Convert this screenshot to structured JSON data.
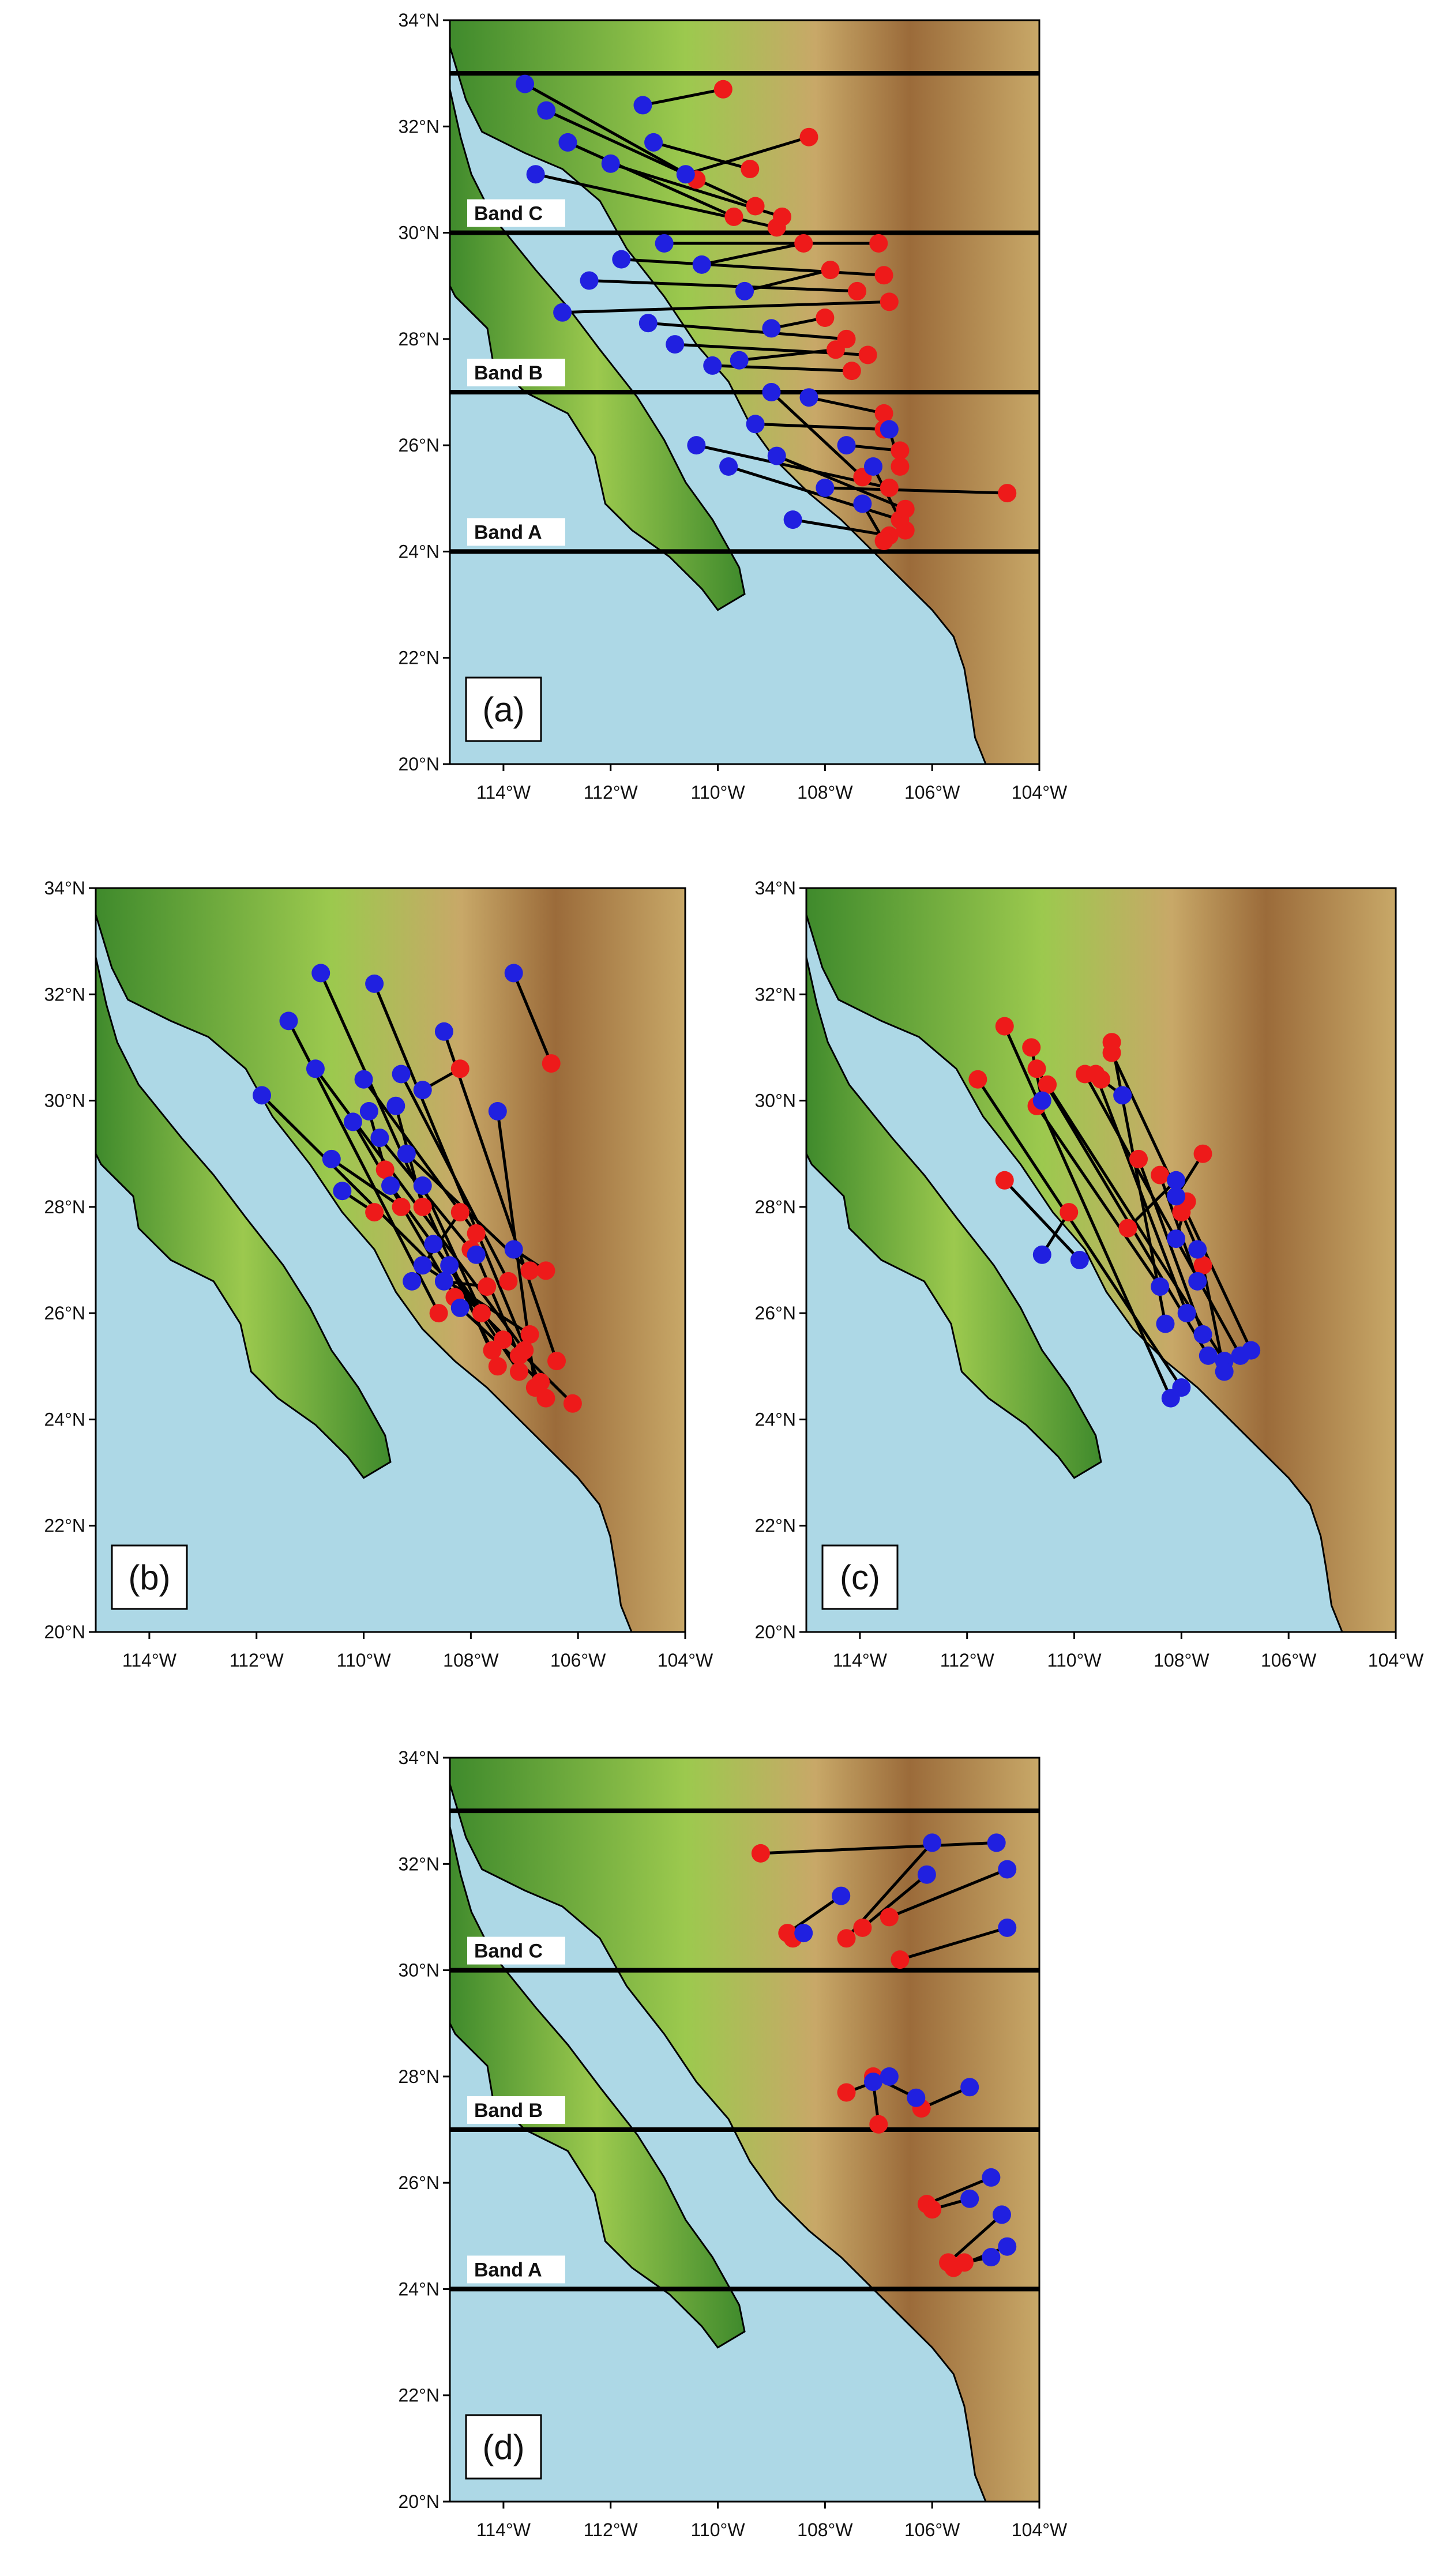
{
  "colors": {
    "ocean": "#add8e6",
    "land_low": "#3f8a2c",
    "land_mid": "#9cc94e",
    "land_high": "#c8a868",
    "land_peak": "#9b6b3a",
    "origin_point": "#2020e0",
    "end_point": "#ee1a1a",
    "track_line": "#000000",
    "band_line": "#000000"
  },
  "map_extent": {
    "lon": [
      -115,
      -104
    ],
    "lat": [
      20,
      34
    ]
  },
  "lon_ticks": [
    "114°W",
    "112°W",
    "110°W",
    "108°W",
    "106°W",
    "104°W"
  ],
  "lat_ticks": [
    "20°N",
    "22°N",
    "24°N",
    "26°N",
    "28°N",
    "30°N",
    "32°N",
    "34°N"
  ],
  "panels": [
    {
      "id": "a",
      "label": "(a)",
      "bands": [
        {
          "label": "Band C",
          "lat_south": 30,
          "lat_north": 33
        },
        {
          "label": "Band B",
          "lat_south": 27,
          "lat_north": 30
        },
        {
          "label": "Band A",
          "lat_south": 24,
          "lat_north": 27
        }
      ],
      "tracks": [
        {
          "start": [
            -113.6,
            32.8
          ],
          "end": [
            -110.4,
            31.0
          ]
        },
        {
          "start": [
            -113.2,
            32.3
          ],
          "end": [
            -109.3,
            30.5
          ]
        },
        {
          "start": [
            -112.8,
            31.7
          ],
          "end": [
            -109.7,
            30.3
          ]
        },
        {
          "start": [
            -112.0,
            31.3
          ],
          "end": [
            -108.8,
            30.3
          ]
        },
        {
          "start": [
            -111.4,
            32.4
          ],
          "end": [
            -109.9,
            32.7
          ]
        },
        {
          "start": [
            -111.2,
            31.7
          ],
          "end": [
            -109.4,
            31.2
          ]
        },
        {
          "start": [
            -110.6,
            31.1
          ],
          "end": [
            -108.3,
            31.8
          ]
        },
        {
          "start": [
            -113.4,
            31.1
          ],
          "end": [
            -108.9,
            30.1
          ]
        },
        {
          "start": [
            -111.0,
            29.8
          ],
          "end": [
            -107.0,
            29.8
          ]
        },
        {
          "start": [
            -111.8,
            29.5
          ],
          "end": [
            -106.9,
            29.2
          ]
        },
        {
          "start": [
            -112.4,
            29.1
          ],
          "end": [
            -107.4,
            28.9
          ]
        },
        {
          "start": [
            -112.9,
            28.5
          ],
          "end": [
            -106.8,
            28.7
          ]
        },
        {
          "start": [
            -111.3,
            28.3
          ],
          "end": [
            -107.6,
            28.0
          ]
        },
        {
          "start": [
            -110.8,
            27.9
          ],
          "end": [
            -107.2,
            27.7
          ]
        },
        {
          "start": [
            -110.1,
            27.5
          ],
          "end": [
            -107.5,
            27.4
          ]
        },
        {
          "start": [
            -109.5,
            28.9
          ],
          "end": [
            -107.9,
            29.3
          ]
        },
        {
          "start": [
            -110.3,
            29.4
          ],
          "end": [
            -108.4,
            29.8
          ]
        },
        {
          "start": [
            -109.0,
            28.2
          ],
          "end": [
            -108.0,
            28.4
          ]
        },
        {
          "start": [
            -109.6,
            27.6
          ],
          "end": [
            -107.8,
            27.8
          ]
        },
        {
          "start": [
            -110.4,
            26.0
          ],
          "end": [
            -106.8,
            25.2
          ]
        },
        {
          "start": [
            -109.8,
            25.6
          ],
          "end": [
            -106.6,
            24.6
          ]
        },
        {
          "start": [
            -109.3,
            26.4
          ],
          "end": [
            -106.9,
            26.3
          ]
        },
        {
          "start": [
            -108.9,
            25.8
          ],
          "end": [
            -106.5,
            24.8
          ]
        },
        {
          "start": [
            -108.6,
            24.6
          ],
          "end": [
            -106.8,
            24.3
          ]
        },
        {
          "start": [
            -108.3,
            26.9
          ],
          "end": [
            -106.9,
            26.6
          ]
        },
        {
          "start": [
            -109.0,
            27.0
          ],
          "end": [
            -107.3,
            25.4
          ]
        },
        {
          "start": [
            -108.0,
            25.2
          ],
          "end": [
            -104.6,
            25.1
          ]
        },
        {
          "start": [
            -107.6,
            26.0
          ],
          "end": [
            -106.6,
            25.9
          ]
        },
        {
          "start": [
            -107.1,
            25.6
          ],
          "end": [
            -106.5,
            24.4
          ]
        },
        {
          "start": [
            -107.3,
            24.9
          ],
          "end": [
            -106.9,
            24.2
          ]
        },
        {
          "start": [
            -106.8,
            26.3
          ],
          "end": [
            -106.6,
            25.6
          ]
        }
      ]
    },
    {
      "id": "b",
      "label": "(b)",
      "bands": [],
      "tracks": [
        {
          "start": [
            -110.8,
            32.4
          ],
          "end": [
            -107.5,
            25.0
          ]
        },
        {
          "start": [
            -109.8,
            32.2
          ],
          "end": [
            -106.6,
            24.4
          ]
        },
        {
          "start": [
            -108.5,
            31.3
          ],
          "end": [
            -106.4,
            25.1
          ]
        },
        {
          "start": [
            -107.2,
            32.4
          ],
          "end": [
            -106.5,
            30.7
          ]
        },
        {
          "start": [
            -111.4,
            31.5
          ],
          "end": [
            -108.6,
            26.0
          ]
        },
        {
          "start": [
            -110.9,
            30.6
          ],
          "end": [
            -107.0,
            25.3
          ]
        },
        {
          "start": [
            -110.0,
            30.4
          ],
          "end": [
            -107.9,
            27.5
          ]
        },
        {
          "start": [
            -109.3,
            30.5
          ],
          "end": [
            -107.3,
            26.6
          ]
        },
        {
          "start": [
            -108.9,
            30.2
          ],
          "end": [
            -108.2,
            30.6
          ]
        },
        {
          "start": [
            -107.5,
            29.8
          ],
          "end": [
            -106.8,
            24.6
          ]
        },
        {
          "start": [
            -111.9,
            30.1
          ],
          "end": [
            -106.1,
            24.3
          ]
        },
        {
          "start": [
            -110.2,
            29.6
          ],
          "end": [
            -108.3,
            26.3
          ]
        },
        {
          "start": [
            -109.7,
            29.3
          ],
          "end": [
            -108.0,
            27.2
          ]
        },
        {
          "start": [
            -109.2,
            29.0
          ],
          "end": [
            -106.9,
            26.8
          ]
        },
        {
          "start": [
            -110.6,
            28.9
          ],
          "end": [
            -109.3,
            28.0
          ]
        },
        {
          "start": [
            -110.4,
            28.3
          ],
          "end": [
            -109.8,
            27.9
          ]
        },
        {
          "start": [
            -109.5,
            28.4
          ],
          "end": [
            -107.4,
            25.5
          ]
        },
        {
          "start": [
            -108.9,
            28.4
          ],
          "end": [
            -107.8,
            26.0
          ]
        },
        {
          "start": [
            -108.7,
            27.3
          ],
          "end": [
            -107.1,
            24.9
          ]
        },
        {
          "start": [
            -108.4,
            26.9
          ],
          "end": [
            -107.6,
            25.3
          ]
        },
        {
          "start": [
            -109.1,
            26.6
          ],
          "end": [
            -108.2,
            27.9
          ]
        },
        {
          "start": [
            -108.9,
            26.9
          ],
          "end": [
            -106.9,
            25.6
          ]
        },
        {
          "start": [
            -107.9,
            27.1
          ],
          "end": [
            -107.1,
            25.2
          ]
        },
        {
          "start": [
            -108.2,
            26.1
          ],
          "end": [
            -106.7,
            24.7
          ]
        },
        {
          "start": [
            -108.5,
            26.6
          ],
          "end": [
            -107.7,
            26.5
          ]
        },
        {
          "start": [
            -107.2,
            27.2
          ],
          "end": [
            -106.6,
            26.8
          ]
        },
        {
          "start": [
            -109.4,
            29.9
          ],
          "end": [
            -108.9,
            28.0
          ]
        },
        {
          "start": [
            -109.9,
            29.8
          ],
          "end": [
            -109.6,
            28.7
          ]
        }
      ]
    },
    {
      "id": "c",
      "label": "(c)",
      "bands": [],
      "tracks": [
        {
          "start": [
            -108.2,
            24.4
          ],
          "end": [
            -111.3,
            31.4
          ]
        },
        {
          "start": [
            -108.0,
            24.6
          ],
          "end": [
            -111.8,
            30.4
          ]
        },
        {
          "start": [
            -107.5,
            25.2
          ],
          "end": [
            -110.7,
            30.6
          ]
        },
        {
          "start": [
            -107.2,
            25.1
          ],
          "end": [
            -110.5,
            30.3
          ]
        },
        {
          "start": [
            -106.9,
            25.2
          ],
          "end": [
            -109.8,
            30.5
          ]
        },
        {
          "start": [
            -106.7,
            25.3
          ],
          "end": [
            -109.3,
            30.9
          ]
        },
        {
          "start": [
            -108.3,
            25.8
          ],
          "end": [
            -109.3,
            31.1
          ]
        },
        {
          "start": [
            -108.4,
            26.5
          ],
          "end": [
            -110.7,
            29.9
          ]
        },
        {
          "start": [
            -107.9,
            26.0
          ],
          "end": [
            -109.6,
            30.5
          ]
        },
        {
          "start": [
            -107.6,
            25.6
          ],
          "end": [
            -108.8,
            28.9
          ]
        },
        {
          "start": [
            -107.7,
            26.6
          ],
          "end": [
            -108.4,
            28.6
          ]
        },
        {
          "start": [
            -107.7,
            27.2
          ],
          "end": [
            -108.0,
            27.9
          ]
        },
        {
          "start": [
            -109.9,
            27.0
          ],
          "end": [
            -111.3,
            28.5
          ]
        },
        {
          "start": [
            -110.6,
            27.1
          ],
          "end": [
            -110.1,
            27.9
          ]
        },
        {
          "start": [
            -108.1,
            28.2
          ],
          "end": [
            -107.6,
            29.0
          ]
        },
        {
          "start": [
            -108.1,
            28.5
          ],
          "end": [
            -109.0,
            27.6
          ]
        },
        {
          "start": [
            -109.1,
            30.1
          ],
          "end": [
            -109.5,
            30.4
          ]
        },
        {
          "start": [
            -110.6,
            30.0
          ],
          "end": [
            -110.8,
            31.0
          ]
        },
        {
          "start": [
            -107.2,
            24.9
          ],
          "end": [
            -107.6,
            26.9
          ]
        },
        {
          "start": [
            -108.1,
            27.4
          ],
          "end": [
            -107.9,
            28.1
          ]
        }
      ]
    },
    {
      "id": "d",
      "label": "(d)",
      "bands": [
        {
          "label": "Band C",
          "lat_south": 30,
          "lat_north": 33
        },
        {
          "label": "Band B",
          "lat_south": 27,
          "lat_north": 30
        },
        {
          "label": "Band A",
          "lat_south": 24,
          "lat_north": 27
        }
      ],
      "tracks": [
        {
          "start": [
            -104.8,
            32.4
          ],
          "end": [
            -109.2,
            32.2
          ]
        },
        {
          "start": [
            -106.0,
            32.4
          ],
          "end": [
            -107.6,
            30.6
          ]
        },
        {
          "start": [
            -106.1,
            31.8
          ],
          "end": [
            -107.3,
            30.8
          ]
        },
        {
          "start": [
            -104.6,
            31.9
          ],
          "end": [
            -106.8,
            31.0
          ]
        },
        {
          "start": [
            -104.6,
            30.8
          ],
          "end": [
            -106.6,
            30.2
          ]
        },
        {
          "start": [
            -107.7,
            31.4
          ],
          "end": [
            -108.7,
            30.7
          ]
        },
        {
          "start": [
            -108.4,
            30.7
          ],
          "end": [
            -108.6,
            30.6
          ]
        },
        {
          "start": [
            -106.8,
            28.0
          ],
          "end": [
            -107.6,
            27.7
          ]
        },
        {
          "start": [
            -106.3,
            27.6
          ],
          "end": [
            -107.1,
            28.0
          ]
        },
        {
          "start": [
            -105.3,
            27.8
          ],
          "end": [
            -106.2,
            27.4
          ]
        },
        {
          "start": [
            -107.1,
            27.9
          ],
          "end": [
            -107.0,
            27.1
          ]
        },
        {
          "start": [
            -104.9,
            26.1
          ],
          "end": [
            -106.1,
            25.6
          ]
        },
        {
          "start": [
            -105.3,
            25.7
          ],
          "end": [
            -106.0,
            25.5
          ]
        },
        {
          "start": [
            -104.7,
            25.4
          ],
          "end": [
            -105.7,
            24.5
          ]
        },
        {
          "start": [
            -104.6,
            24.8
          ],
          "end": [
            -105.6,
            24.4
          ]
        },
        {
          "start": [
            -104.9,
            24.6
          ],
          "end": [
            -105.4,
            24.5
          ]
        }
      ]
    }
  ]
}
